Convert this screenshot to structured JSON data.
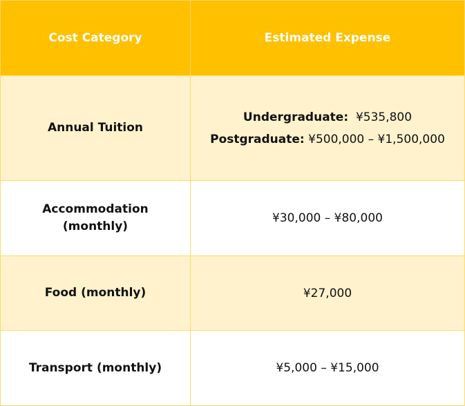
{
  "table": {
    "headers": [
      "Cost Category",
      "Estimated Expense"
    ],
    "colors": {
      "header_bg": "#FFC000",
      "header_text": "#FFFFFF",
      "alt_row_bg": "#FFF2CC",
      "border": "#FFD966"
    },
    "rows": [
      {
        "category": "Annual Tuition",
        "expense_lines": [
          {
            "label": "Undergraduate:",
            "value": "¥535,800"
          },
          {
            "label": "Postgraduate:",
            "value": "¥500,000 – ¥1,500,000"
          }
        ]
      },
      {
        "category": "Accommodation (monthly)",
        "expense": "¥30,000 – ¥80,000"
      },
      {
        "category": "Food (monthly)",
        "expense": "¥27,000"
      },
      {
        "category": "Transport (monthly)",
        "expense": "¥5,000 – ¥15,000"
      }
    ]
  }
}
